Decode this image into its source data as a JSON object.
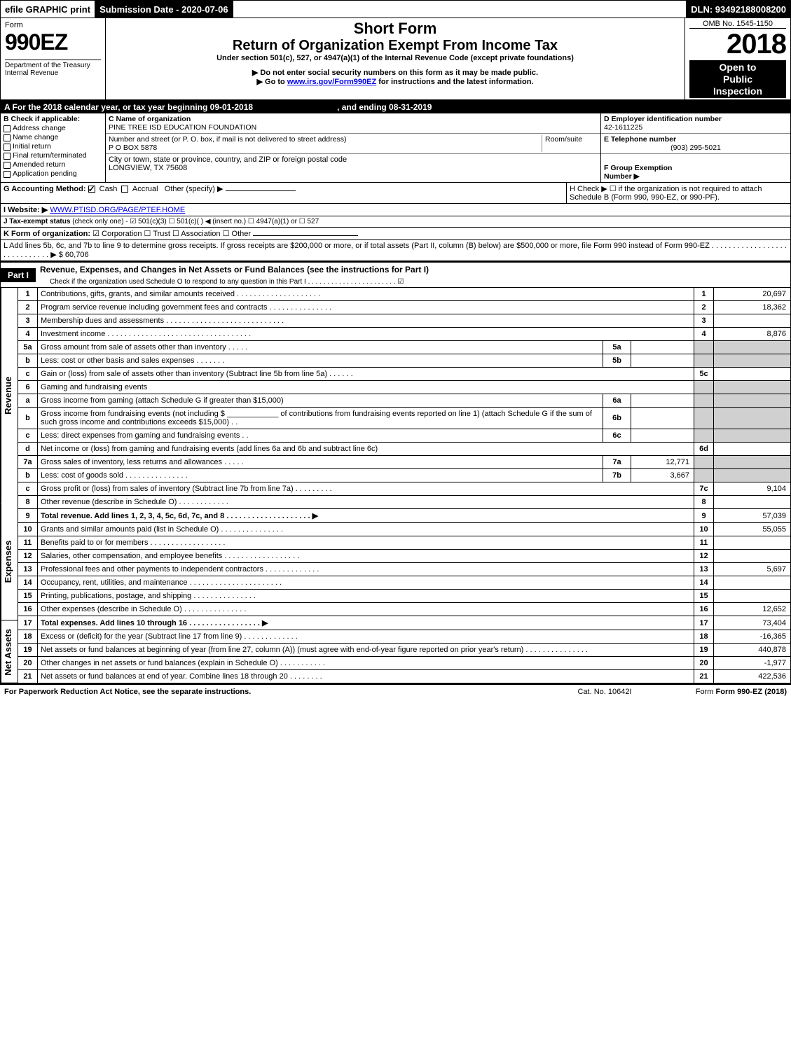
{
  "topbar": {
    "efile": "efile GRAPHIC print",
    "submission": "Submission Date - 2020-07-06",
    "dln": "DLN: 93492188008200"
  },
  "header": {
    "form_label": "Form",
    "form_no": "990EZ",
    "dept": "Department of the Treasury\nInternal Revenue",
    "short_form": "Short Form",
    "title": "Return of Organization Exempt From Income Tax",
    "subtitle": "Under section 501(c), 527, or 4947(a)(1) of the Internal Revenue Code (except private foundations)",
    "warn1": "▶ Do not enter social security numbers on this form as it may be made public.",
    "warn2_pre": "▶ Go to ",
    "warn2_link": "www.irs.gov/Form990EZ",
    "warn2_post": " for instructions and the latest information.",
    "omb": "OMB No. 1545-1150",
    "year": "2018",
    "open": "Open to\nPublic\nInspection"
  },
  "period": {
    "line": "A  For the 2018 calendar year, or tax year beginning 09-01-2018",
    "ending": ", and ending 08-31-2019"
  },
  "sectionB": {
    "heading": "B  Check if applicable:",
    "items": [
      {
        "label": "Address change",
        "checked": false
      },
      {
        "label": "Name change",
        "checked": false
      },
      {
        "label": "Initial return",
        "checked": false
      },
      {
        "label": "Final return/terminated",
        "checked": false
      },
      {
        "label": "Amended return",
        "checked": false
      },
      {
        "label": "Application pending",
        "checked": false
      }
    ]
  },
  "org": {
    "c_label": "C Name of organization",
    "name": "PINE TREE ISD EDUCATION FOUNDATION",
    "addr_label": "Number and street (or P. O. box, if mail is not delivered to street address)",
    "room_label": "Room/suite",
    "addr": "P O BOX 5878",
    "city_label": "City or town, state or province, country, and ZIP or foreign postal code",
    "city": "LONGVIEW, TX  75608"
  },
  "right": {
    "d_label": "D Employer identification number",
    "ein": "42-1611225",
    "e_label": "E Telephone number",
    "phone": "(903) 295-5021",
    "f_label": "F Group Exemption\nNumber   ▶"
  },
  "lineG": {
    "label": "G Accounting Method:",
    "cash": "Cash",
    "accrual": "Accrual",
    "other": "Other (specify) ▶"
  },
  "lineH": {
    "text": "H   Check ▶  ☐  if the organization is not required to attach Schedule B (Form 990, 990-EZ, or 990-PF)."
  },
  "lineI": {
    "label": "I Website: ▶",
    "url": "WWW.PTISD.ORG/PAGE/PTEF.HOME"
  },
  "lineJ": {
    "label": "J Tax-exempt status",
    "rest": "(check only one) -  ☑ 501(c)(3)  ☐ 501(c)(  ) ◀ (insert no.)  ☐ 4947(a)(1) or  ☐ 527"
  },
  "lineK": {
    "label": "K Form of organization:",
    "rest": "☑ Corporation   ☐ Trust   ☐ Association   ☐ Other"
  },
  "lineL": {
    "text": "L Add lines 5b, 6c, and 7b to line 9 to determine gross receipts. If gross receipts are $200,000 or more, or if total assets (Part II, column (B) below) are $500,000 or more, file Form 990 instead of Form 990-EZ . . . . . . . . . . . . . . . . . . . . . . . . . . . . .  ▶ $ 60,706"
  },
  "part1": {
    "label": "Part I",
    "title": "Revenue, Expenses, and Changes in Net Assets or Fund Balances (see the instructions for Part I)",
    "check_line": "Check if the organization used Schedule O to respond to any question in this Part I . . . . . . . . . . . . . . . . . . . . . . . ☑"
  },
  "side_labels": {
    "revenue": "Revenue",
    "expenses": "Expenses",
    "netassets": "Net Assets"
  },
  "rows": [
    {
      "n": "1",
      "desc": "Contributions, gifts, grants, and similar amounts received . . . . . . . . . . . . . . . . . . . .",
      "rnum": "1",
      "amt": "20,697"
    },
    {
      "n": "2",
      "desc": "Program service revenue including government fees and contracts . . . . . . . . . . . . . . .",
      "rnum": "2",
      "amt": "18,362"
    },
    {
      "n": "3",
      "desc": "Membership dues and assessments . . . . . . . . . . . . . . . . . . . . . . . . . . . .",
      "rnum": "3",
      "amt": ""
    },
    {
      "n": "4",
      "desc": "Investment income . . . . . . . . . . . . . . . . . . . . . . . . . . . . . . . . . .",
      "rnum": "4",
      "amt": "8,876"
    },
    {
      "n": "5a",
      "desc": "Gross amount from sale of assets other than inventory . . . . .",
      "mid": "5a",
      "midval": "",
      "shaded": true
    },
    {
      "n": "b",
      "desc": "Less: cost or other basis and sales expenses . . . . . . .",
      "mid": "5b",
      "midval": "",
      "shaded": true
    },
    {
      "n": "c",
      "desc": "Gain or (loss) from sale of assets other than inventory (Subtract line 5b from line 5a) . . . . . .",
      "rnum": "5c",
      "amt": ""
    },
    {
      "n": "6",
      "desc": "Gaming and fundraising events",
      "shaded": true,
      "noboxes": true
    },
    {
      "n": "a",
      "desc": "Gross income from gaming (attach Schedule G if greater than $15,000)",
      "mid": "6a",
      "midval": "",
      "shaded": true
    },
    {
      "n": "b",
      "desc": "Gross income from fundraising events (not including $ ____________ of contributions from fundraising events reported on line 1) (attach Schedule G if the sum of such gross income and contributions exceeds $15,000)    . .",
      "mid": "6b",
      "midval": "",
      "shaded": true
    },
    {
      "n": "c",
      "desc": "Less: direct expenses from gaming and fundraising events     . .",
      "mid": "6c",
      "midval": "",
      "shaded": true
    },
    {
      "n": "d",
      "desc": "Net income or (loss) from gaming and fundraising events (add lines 6a and 6b and subtract line 6c)",
      "rnum": "6d",
      "amt": ""
    },
    {
      "n": "7a",
      "desc": "Gross sales of inventory, less returns and allowances . . . . .",
      "mid": "7a",
      "midval": "12,771",
      "shaded": true
    },
    {
      "n": "b",
      "desc": "Less: cost of goods sold    . . . . . . . . . . . . . . .",
      "mid": "7b",
      "midval": "3,667",
      "shaded": true
    },
    {
      "n": "c",
      "desc": "Gross profit or (loss) from sales of inventory (Subtract line 7b from line 7a) . . . . . . . . .",
      "rnum": "7c",
      "amt": "9,104"
    },
    {
      "n": "8",
      "desc": "Other revenue (describe in Schedule O)                          . . . . . . . . . . . .",
      "rnum": "8",
      "amt": ""
    },
    {
      "n": "9",
      "desc": "Total revenue. Add lines 1, 2, 3, 4, 5c, 6d, 7c, and 8 . . . . . . . . . . . . . . . . . . . . ▶",
      "rnum": "9",
      "amt": "57,039",
      "bold": true
    },
    {
      "n": "10",
      "desc": "Grants and similar amounts paid (list in Schedule O)        . . . . . . . . . . . . . . .",
      "rnum": "10",
      "amt": "55,055"
    },
    {
      "n": "11",
      "desc": "Benefits paid to or for members                . . . . . . . . . . . . . . . . . .",
      "rnum": "11",
      "amt": ""
    },
    {
      "n": "12",
      "desc": "Salaries, other compensation, and employee benefits . . . . . . . . . . . . . . . . . .",
      "rnum": "12",
      "amt": ""
    },
    {
      "n": "13",
      "desc": "Professional fees and other payments to independent contractors . . . . . . . . . . . . .",
      "rnum": "13",
      "amt": "5,697"
    },
    {
      "n": "14",
      "desc": "Occupancy, rent, utilities, and maintenance . . . . . . . . . . . . . . . . . . . . . .",
      "rnum": "14",
      "amt": ""
    },
    {
      "n": "15",
      "desc": "Printing, publications, postage, and shipping          . . . . . . . . . . . . . . .",
      "rnum": "15",
      "amt": ""
    },
    {
      "n": "16",
      "desc": "Other expenses (describe in Schedule O)              . . . . . . . . . . . . . . .",
      "rnum": "16",
      "amt": "12,652"
    },
    {
      "n": "17",
      "desc": "Total expenses. Add lines 10 through 16          . . . . . . . . . . . . . . . . . ▶",
      "rnum": "17",
      "amt": "73,404",
      "bold": true
    },
    {
      "n": "18",
      "desc": "Excess or (deficit) for the year (Subtract line 17 from line 9)      . . . . . . . . . . . . .",
      "rnum": "18",
      "amt": "-16,365"
    },
    {
      "n": "19",
      "desc": "Net assets or fund balances at beginning of year (from line 27, column (A)) (must agree with end-of-year figure reported on prior year's return)          . . . . . . . . . . . . . . .",
      "rnum": "19",
      "amt": "440,878"
    },
    {
      "n": "20",
      "desc": "Other changes in net assets or fund balances (explain in Schedule O)    . . . . . . . . . . .",
      "rnum": "20",
      "amt": "-1,977"
    },
    {
      "n": "21",
      "desc": "Net assets or fund balances at end of year. Combine lines 18 through 20      . . . . . . . .",
      "rnum": "21",
      "amt": "422,536"
    }
  ],
  "footer": {
    "left": "For Paperwork Reduction Act Notice, see the separate instructions.",
    "mid": "Cat. No. 10642I",
    "right": "Form 990-EZ (2018)"
  }
}
